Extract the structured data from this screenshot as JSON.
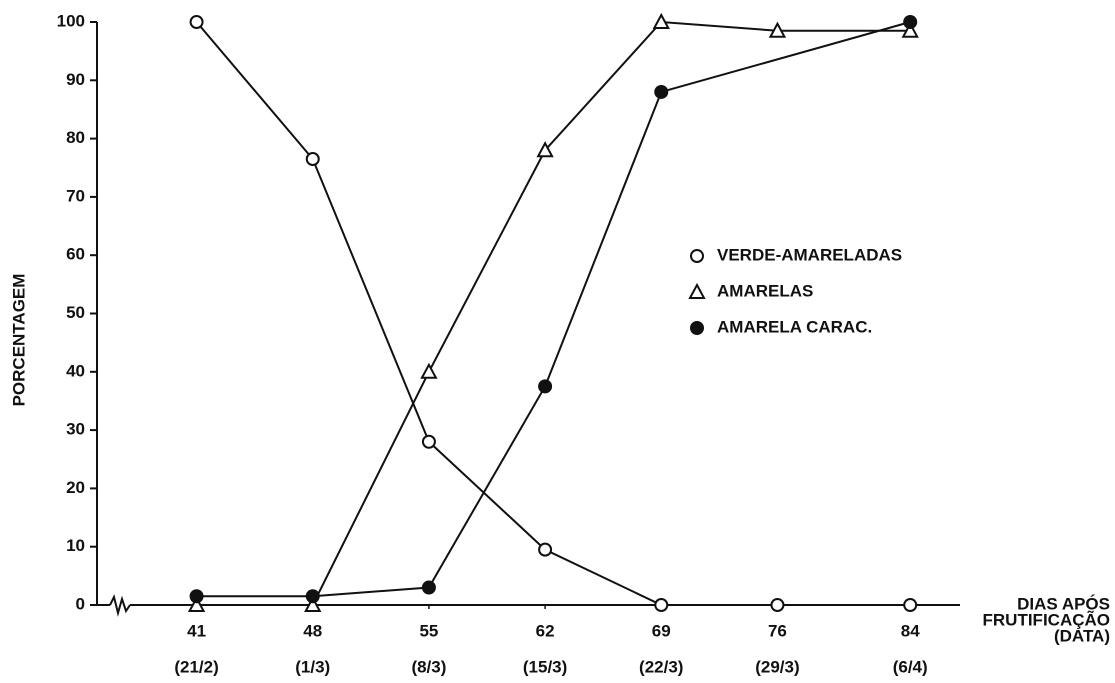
{
  "chart_data": {
    "type": "line",
    "ylabel": "PORCENTAGEM",
    "xlabel": [
      "DIAS APÓS",
      "FRUTIFICAÇÃO",
      "(DATA)"
    ],
    "xticks": [
      41,
      48,
      55,
      62,
      69,
      76,
      84
    ],
    "xtick_dates": [
      "(21/2)",
      "(1/3)",
      "(8/3)",
      "(15/3)",
      "(22/3)",
      "(29/3)",
      "(6/4)"
    ],
    "xlim": [
      35,
      87
    ],
    "ylim": [
      0,
      100
    ],
    "yticks": [
      0,
      10,
      20,
      30,
      40,
      50,
      60,
      70,
      80,
      90,
      100
    ],
    "series": [
      {
        "name": "VERDE-AMARELADAS",
        "marker": "open-circle",
        "color": "#111",
        "x": [
          41,
          48,
          55,
          62,
          69,
          76,
          84
        ],
        "values": [
          100,
          76.5,
          28,
          9.5,
          0,
          0,
          0
        ]
      },
      {
        "name": "AMARELAS",
        "marker": "open-triangle",
        "color": "#111",
        "x": [
          41,
          48,
          55,
          62,
          69,
          76,
          84
        ],
        "values": [
          0,
          0,
          40,
          78,
          100,
          98.5,
          98.5
        ]
      },
      {
        "name": "AMARELA CARAC.",
        "marker": "filled-circle",
        "color": "#111",
        "x": [
          41,
          48,
          55,
          62,
          69,
          84
        ],
        "values": [
          1.5,
          1.5,
          3,
          37.5,
          88,
          100
        ]
      }
    ]
  }
}
